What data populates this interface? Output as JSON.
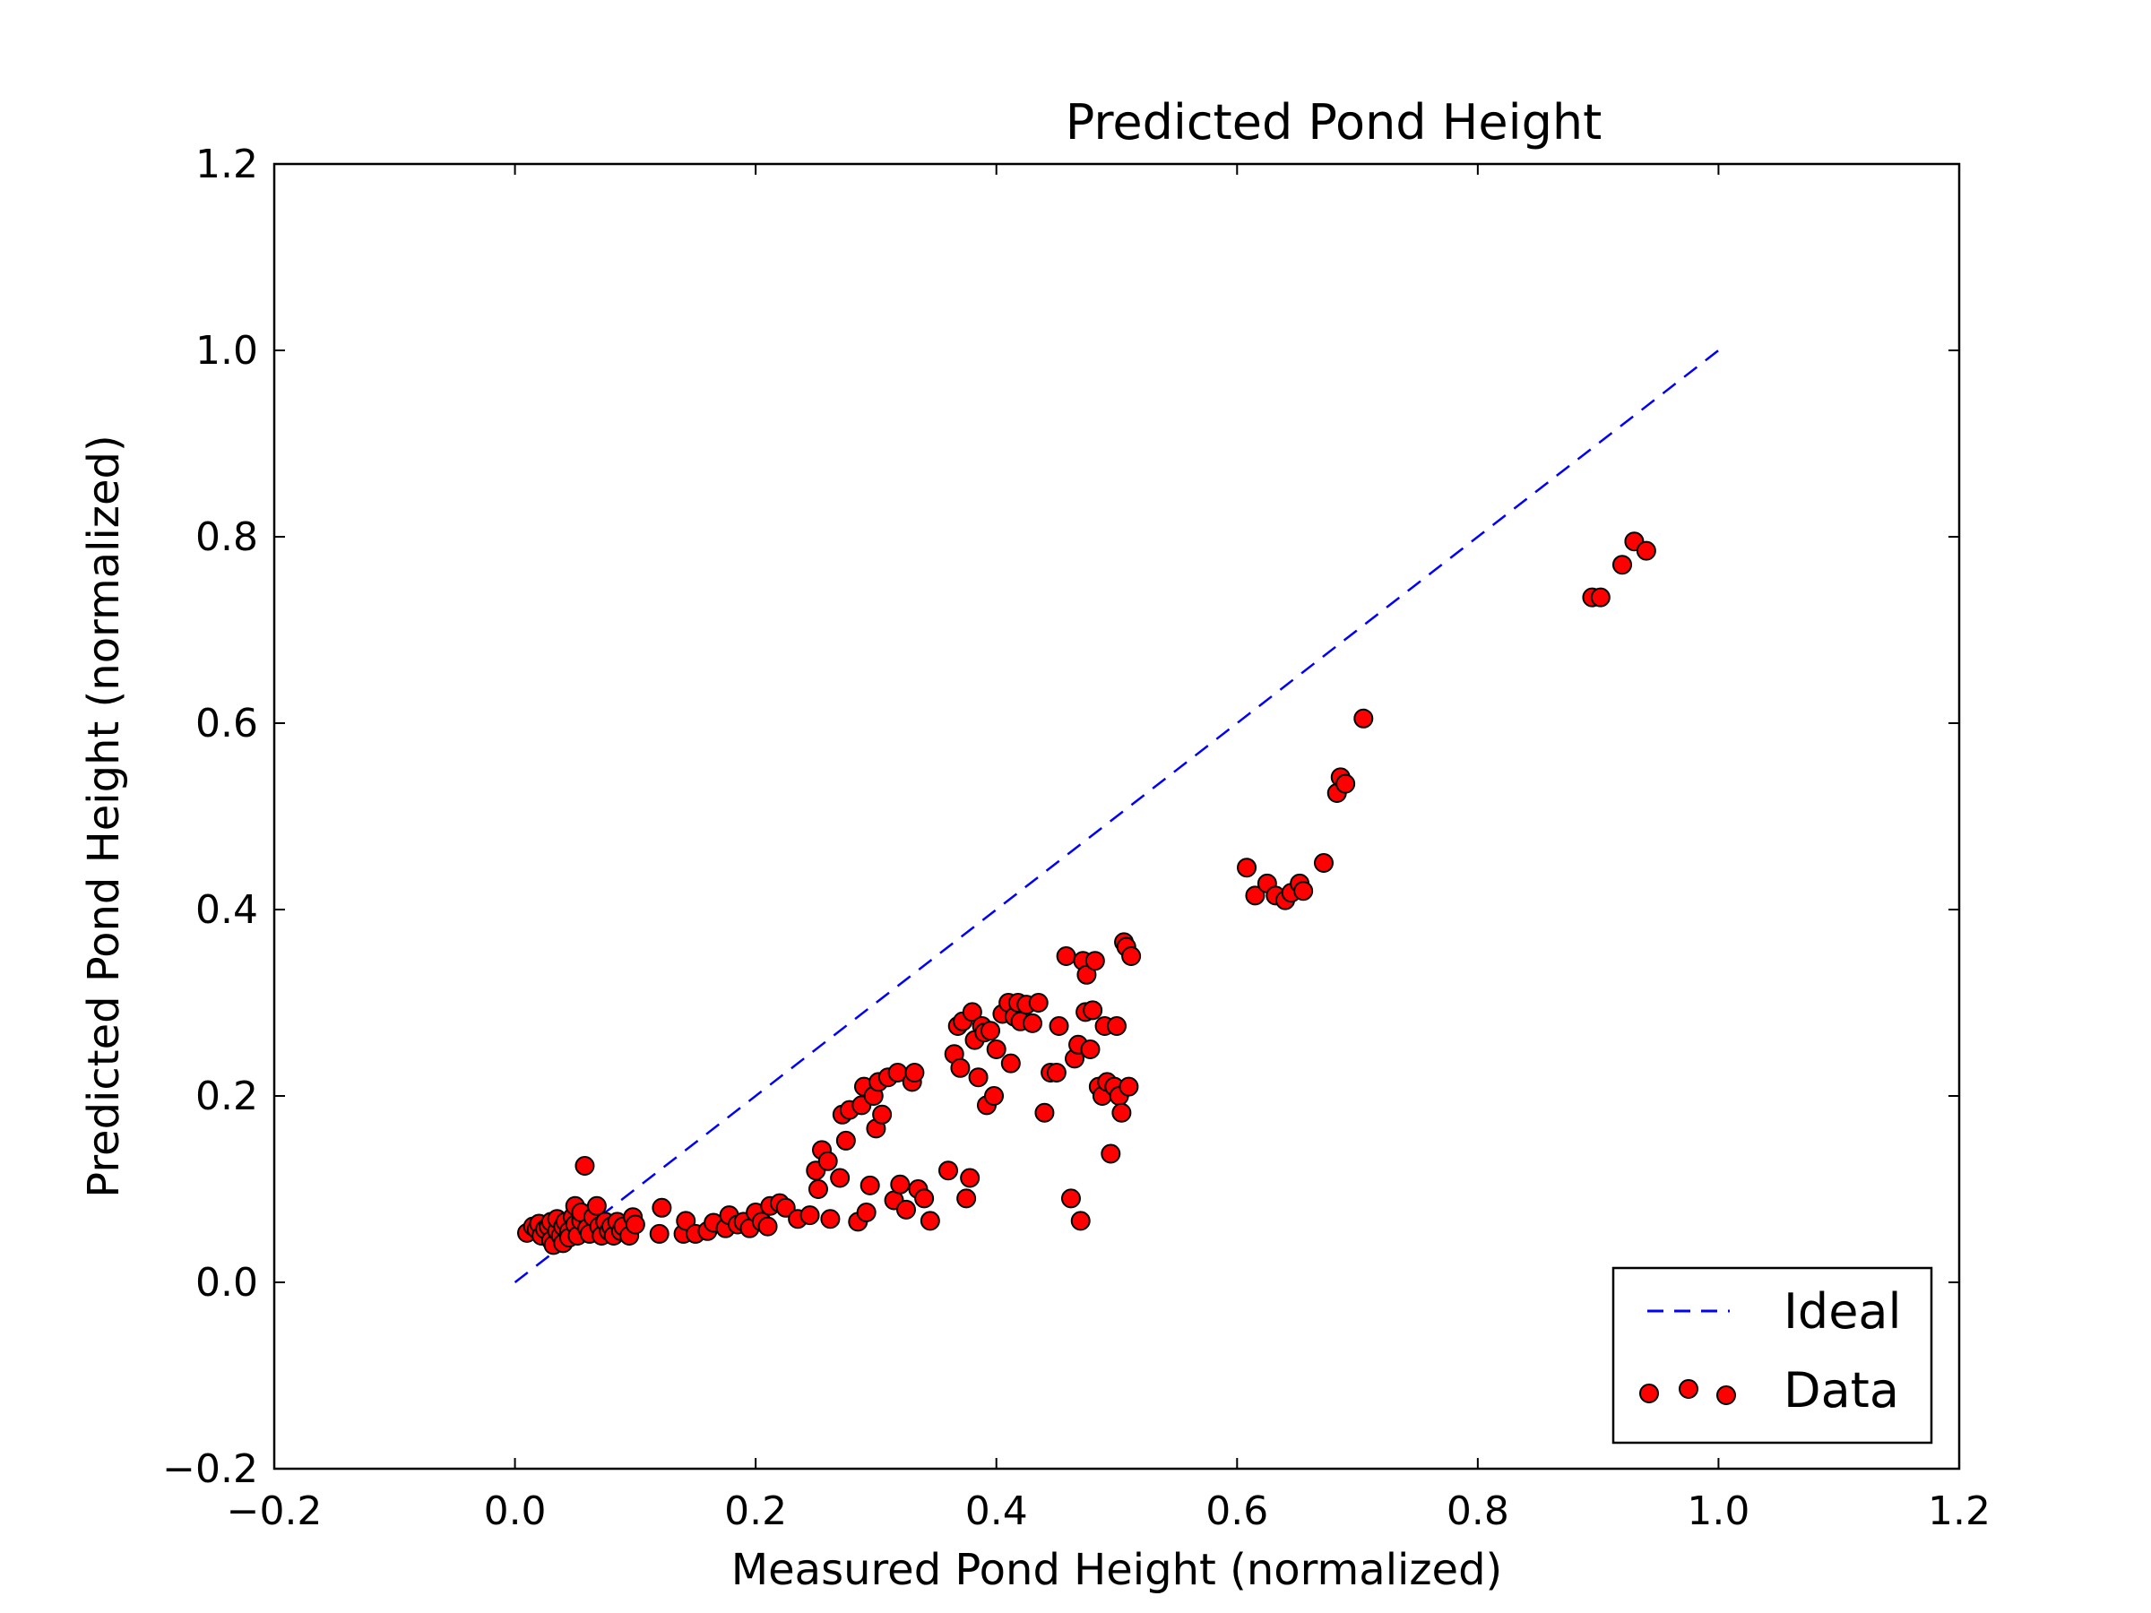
{
  "chart_data": {
    "type": "scatter",
    "title": "Predicted Pond Height",
    "xlabel": "Measured Pond Height (normalized)",
    "ylabel": "Predicted Pond Height (normalized)",
    "xlim": [
      -0.2,
      1.2
    ],
    "ylim": [
      -0.2,
      1.2
    ],
    "xticks": [
      -0.2,
      0.0,
      0.2,
      0.4,
      0.6,
      0.8,
      1.0,
      1.2
    ],
    "yticks": [
      -0.2,
      0.0,
      0.2,
      0.4,
      0.6,
      0.8,
      1.0,
      1.2
    ],
    "xtick_labels": [
      "−0.2",
      "0.0",
      "0.2",
      "0.4",
      "0.6",
      "0.8",
      "1.0",
      "1.2"
    ],
    "ytick_labels": [
      "−0.2",
      "0.0",
      "0.2",
      "0.4",
      "0.6",
      "0.8",
      "1.0",
      "1.2"
    ],
    "grid": false,
    "legend_position": "bottom-right",
    "legend": [
      "Ideal",
      "Data"
    ],
    "colors": {
      "ideal": "#0000ff",
      "data_fill": "#ff0000",
      "data_edge": "#000000"
    },
    "ideal_line": {
      "name": "Ideal",
      "style": "dashed",
      "x": [
        0.0,
        1.0
      ],
      "y": [
        0.0,
        1.0
      ]
    },
    "series": [
      {
        "name": "Data",
        "points": [
          [
            0.01,
            0.053
          ],
          [
            0.015,
            0.06
          ],
          [
            0.018,
            0.057
          ],
          [
            0.02,
            0.063
          ],
          [
            0.022,
            0.05
          ],
          [
            0.025,
            0.057
          ],
          [
            0.028,
            0.06
          ],
          [
            0.03,
            0.045
          ],
          [
            0.03,
            0.065
          ],
          [
            0.032,
            0.04
          ],
          [
            0.035,
            0.055
          ],
          [
            0.035,
            0.068
          ],
          [
            0.038,
            0.05
          ],
          [
            0.04,
            0.06
          ],
          [
            0.04,
            0.042
          ],
          [
            0.042,
            0.065
          ],
          [
            0.045,
            0.055
          ],
          [
            0.045,
            0.048
          ],
          [
            0.048,
            0.07
          ],
          [
            0.05,
            0.062
          ],
          [
            0.05,
            0.082
          ],
          [
            0.052,
            0.05
          ],
          [
            0.055,
            0.066
          ],
          [
            0.055,
            0.075
          ],
          [
            0.058,
            0.125
          ],
          [
            0.06,
            0.058
          ],
          [
            0.062,
            0.052
          ],
          [
            0.065,
            0.07
          ],
          [
            0.068,
            0.082
          ],
          [
            0.07,
            0.06
          ],
          [
            0.072,
            0.05
          ],
          [
            0.075,
            0.065
          ],
          [
            0.078,
            0.055
          ],
          [
            0.08,
            0.06
          ],
          [
            0.082,
            0.05
          ],
          [
            0.085,
            0.065
          ],
          [
            0.088,
            0.055
          ],
          [
            0.09,
            0.06
          ],
          [
            0.095,
            0.05
          ],
          [
            0.098,
            0.07
          ],
          [
            0.1,
            0.062
          ],
          [
            0.12,
            0.052
          ],
          [
            0.122,
            0.08
          ],
          [
            0.14,
            0.052
          ],
          [
            0.142,
            0.066
          ],
          [
            0.15,
            0.052
          ],
          [
            0.16,
            0.055
          ],
          [
            0.165,
            0.064
          ],
          [
            0.175,
            0.058
          ],
          [
            0.178,
            0.072
          ],
          [
            0.185,
            0.062
          ],
          [
            0.19,
            0.065
          ],
          [
            0.195,
            0.058
          ],
          [
            0.2,
            0.075
          ],
          [
            0.205,
            0.065
          ],
          [
            0.21,
            0.06
          ],
          [
            0.212,
            0.082
          ],
          [
            0.22,
            0.085
          ],
          [
            0.225,
            0.08
          ],
          [
            0.235,
            0.068
          ],
          [
            0.245,
            0.072
          ],
          [
            0.25,
            0.12
          ],
          [
            0.252,
            0.1
          ],
          [
            0.255,
            0.142
          ],
          [
            0.26,
            0.13
          ],
          [
            0.262,
            0.068
          ],
          [
            0.27,
            0.112
          ],
          [
            0.272,
            0.18
          ],
          [
            0.275,
            0.152
          ],
          [
            0.278,
            0.185
          ],
          [
            0.285,
            0.065
          ],
          [
            0.288,
            0.19
          ],
          [
            0.29,
            0.21
          ],
          [
            0.292,
            0.075
          ],
          [
            0.295,
            0.104
          ],
          [
            0.298,
            0.2
          ],
          [
            0.3,
            0.165
          ],
          [
            0.302,
            0.215
          ],
          [
            0.305,
            0.18
          ],
          [
            0.31,
            0.22
          ],
          [
            0.315,
            0.088
          ],
          [
            0.318,
            0.225
          ],
          [
            0.32,
            0.105
          ],
          [
            0.325,
            0.078
          ],
          [
            0.33,
            0.215
          ],
          [
            0.332,
            0.225
          ],
          [
            0.335,
            0.1
          ],
          [
            0.34,
            0.09
          ],
          [
            0.345,
            0.066
          ],
          [
            0.36,
            0.12
          ],
          [
            0.365,
            0.245
          ],
          [
            0.368,
            0.275
          ],
          [
            0.37,
            0.23
          ],
          [
            0.372,
            0.28
          ],
          [
            0.375,
            0.09
          ],
          [
            0.378,
            0.112
          ],
          [
            0.38,
            0.29
          ],
          [
            0.382,
            0.26
          ],
          [
            0.385,
            0.22
          ],
          [
            0.388,
            0.275
          ],
          [
            0.39,
            0.268
          ],
          [
            0.392,
            0.19
          ],
          [
            0.395,
            0.27
          ],
          [
            0.398,
            0.2
          ],
          [
            0.4,
            0.25
          ],
          [
            0.405,
            0.288
          ],
          [
            0.41,
            0.3
          ],
          [
            0.412,
            0.235
          ],
          [
            0.415,
            0.285
          ],
          [
            0.418,
            0.3
          ],
          [
            0.42,
            0.28
          ],
          [
            0.425,
            0.298
          ],
          [
            0.43,
            0.278
          ],
          [
            0.435,
            0.3
          ],
          [
            0.44,
            0.182
          ],
          [
            0.445,
            0.225
          ],
          [
            0.45,
            0.225
          ],
          [
            0.452,
            0.275
          ],
          [
            0.458,
            0.35
          ],
          [
            0.462,
            0.09
          ],
          [
            0.465,
            0.24
          ],
          [
            0.468,
            0.255
          ],
          [
            0.47,
            0.066
          ],
          [
            0.472,
            0.345
          ],
          [
            0.474,
            0.29
          ],
          [
            0.475,
            0.33
          ],
          [
            0.478,
            0.25
          ],
          [
            0.48,
            0.292
          ],
          [
            0.482,
            0.345
          ],
          [
            0.485,
            0.21
          ],
          [
            0.488,
            0.2
          ],
          [
            0.49,
            0.275
          ],
          [
            0.492,
            0.215
          ],
          [
            0.495,
            0.138
          ],
          [
            0.498,
            0.21
          ],
          [
            0.5,
            0.275
          ],
          [
            0.502,
            0.2
          ],
          [
            0.504,
            0.182
          ],
          [
            0.506,
            0.365
          ],
          [
            0.508,
            0.36
          ],
          [
            0.51,
            0.21
          ],
          [
            0.512,
            0.35
          ],
          [
            0.608,
            0.445
          ],
          [
            0.615,
            0.415
          ],
          [
            0.625,
            0.428
          ],
          [
            0.632,
            0.415
          ],
          [
            0.64,
            0.41
          ],
          [
            0.645,
            0.418
          ],
          [
            0.652,
            0.428
          ],
          [
            0.655,
            0.42
          ],
          [
            0.672,
            0.45
          ],
          [
            0.683,
            0.525
          ],
          [
            0.686,
            0.542
          ],
          [
            0.69,
            0.535
          ],
          [
            0.705,
            0.605
          ],
          [
            0.895,
            0.735
          ],
          [
            0.902,
            0.735
          ],
          [
            0.92,
            0.77
          ],
          [
            0.93,
            0.795
          ],
          [
            0.94,
            0.785
          ]
        ]
      }
    ]
  }
}
